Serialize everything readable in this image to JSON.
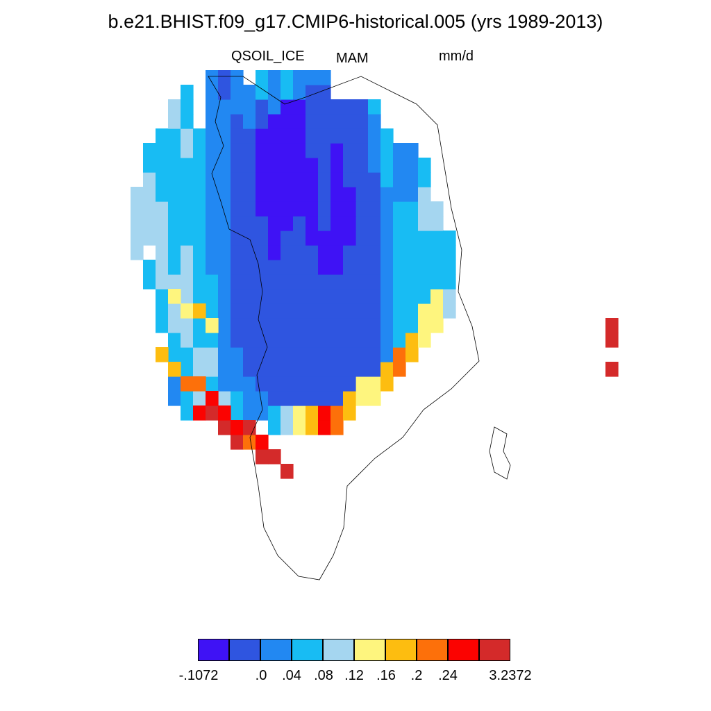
{
  "title": "b.e21.BHIST.f09_g17.CMIP6-historical.005 (yrs 1989-2013)",
  "variable": "QSOIL_ICE",
  "season": "MAM",
  "units": "mm/d",
  "colorbar": {
    "colors": [
      "#3f12f5",
      "#2f55e0",
      "#2288f2",
      "#18bcf3",
      "#a5d6f0",
      "#fef57e",
      "#fdbd10",
      "#fd700a",
      "#fb0301",
      "#d42a2a"
    ],
    "labels": [
      "-.1072",
      ".0",
      ".04",
      ".08",
      ".12",
      ".16",
      ".2",
      ".24",
      "3.2372"
    ]
  },
  "map_data": {
    "region": "Greenland",
    "columns": {
      "-18": [
        [
          72,
          76,
          4
        ]
      ],
      "-17": [
        [
          70,
          71,
          3
        ],
        [
          73,
          77,
          4
        ],
        [
          78,
          79,
          3
        ]
      ],
      "-16": [
        [
          67,
          69,
          3
        ],
        [
          70,
          75,
          4
        ],
        [
          76,
          80,
          3
        ]
      ],
      "-15": [
        [
          62,
          63,
          2
        ],
        [
          64,
          66,
          3
        ],
        [
          67,
          70,
          4
        ],
        [
          71,
          80,
          3
        ],
        [
          81,
          82,
          4
        ]
      ],
      "-14": [
        [
          61,
          65,
          3
        ],
        [
          66,
          72,
          4
        ],
        [
          73,
          78,
          3
        ],
        [
          79,
          80,
          4
        ],
        [
          81,
          83,
          3
        ]
      ],
      "-13": [
        [
          62,
          65,
          4
        ],
        [
          66,
          80,
          3
        ]
      ],
      "-12": [
        [
          62,
          63,
          3
        ],
        [
          64,
          65,
          4
        ],
        [
          66,
          70,
          3
        ],
        [
          71,
          84,
          2
        ]
      ],
      "-11": [
        [
          60,
          62,
          4
        ],
        [
          63,
          82,
          2
        ],
        [
          83,
          84,
          1
        ]
      ],
      "-10": [
        [
          60,
          62,
          3
        ],
        [
          63,
          65,
          2
        ],
        [
          66,
          81,
          1
        ],
        [
          82,
          84,
          2
        ]
      ],
      "-9": [
        [
          61,
          63,
          2
        ],
        [
          64,
          80,
          1
        ],
        [
          81,
          83,
          2
        ]
      ],
      "-8": [
        [
          61,
          62,
          2
        ],
        [
          63,
          74,
          1
        ],
        [
          75,
          80,
          0
        ],
        [
          81,
          82,
          1
        ],
        [
          83,
          84,
          3
        ]
      ],
      "-7": [
        [
          60,
          61,
          3
        ],
        [
          62,
          71,
          1
        ],
        [
          72,
          81,
          0
        ],
        [
          82,
          84,
          2
        ]
      ],
      "-6": [
        [
          60,
          61,
          4
        ],
        [
          62,
          73,
          1
        ],
        [
          74,
          82,
          0
        ],
        [
          83,
          84,
          3
        ]
      ],
      "-5": [
        [
          60,
          61,
          5
        ],
        [
          62,
          74,
          1
        ],
        [
          75,
          82,
          0
        ],
        [
          83,
          84,
          2
        ]
      ],
      "-4": [
        [
          60,
          61,
          6
        ],
        [
          62,
          72,
          1
        ],
        [
          73,
          78,
          0
        ],
        [
          79,
          83,
          1
        ],
        [
          84,
          84,
          2
        ]
      ],
      "-3": [
        [
          60,
          61,
          8
        ],
        [
          62,
          70,
          1
        ],
        [
          71,
          73,
          0
        ],
        [
          74,
          83,
          1
        ],
        [
          84,
          84,
          2
        ]
      ],
      "-2": [
        [
          60,
          61,
          7
        ],
        [
          62,
          70,
          1
        ],
        [
          71,
          79,
          0
        ],
        [
          80,
          82,
          1
        ]
      ],
      "-1": [
        [
          61,
          62,
          6
        ],
        [
          63,
          72,
          1
        ],
        [
          73,
          76,
          0
        ],
        [
          77,
          82,
          1
        ]
      ],
      "0": [
        [
          62,
          63,
          5
        ],
        [
          64,
          77,
          1
        ],
        [
          78,
          82,
          1
        ]
      ],
      "1": [
        [
          62,
          63,
          5
        ],
        [
          64,
          77,
          1
        ],
        [
          78,
          81,
          2
        ],
        [
          82,
          82,
          3
        ]
      ],
      "2": [
        [
          63,
          64,
          6
        ],
        [
          65,
          76,
          2
        ],
        [
          77,
          80,
          3
        ]
      ],
      "3": [
        [
          64,
          65,
          7
        ],
        [
          66,
          75,
          3
        ],
        [
          76,
          79,
          2
        ]
      ],
      "4": [
        [
          65,
          66,
          6
        ],
        [
          67,
          75,
          3
        ],
        [
          76,
          79,
          2
        ]
      ],
      "5": [
        [
          66,
          68,
          5
        ],
        [
          69,
          73,
          3
        ],
        [
          74,
          76,
          4
        ],
        [
          77,
          78,
          3
        ]
      ],
      "6": [
        [
          67,
          69,
          5
        ],
        [
          70,
          73,
          3
        ],
        [
          74,
          75,
          4
        ]
      ],
      "7": [
        [
          68,
          69,
          4
        ],
        [
          70,
          73,
          3
        ]
      ]
    },
    "west_coast_highs": [
      [
        -16,
        65,
        6
      ],
      [
        -15,
        64,
        6
      ],
      [
        -14,
        63,
        7
      ],
      [
        -13,
        61,
        8
      ],
      [
        -13,
        63,
        7
      ],
      [
        -12,
        61,
        9
      ],
      [
        -12,
        62,
        8
      ],
      [
        -11,
        60,
        9
      ],
      [
        -11,
        61,
        8
      ],
      [
        -10,
        59,
        9
      ],
      [
        -10,
        60,
        8
      ],
      [
        -9,
        59,
        7
      ],
      [
        -9,
        60,
        9
      ],
      [
        -8,
        58,
        9
      ],
      [
        -8,
        59,
        8
      ],
      [
        -7,
        58,
        9
      ],
      [
        -6,
        57,
        9
      ],
      [
        -15,
        69,
        5
      ],
      [
        -14,
        68,
        5
      ],
      [
        -13,
        68,
        6
      ],
      [
        -12,
        67,
        5
      ]
    ],
    "iceland_cells": [
      [
        20,
        64,
        9
      ],
      [
        20,
        66,
        9
      ],
      [
        20,
        67,
        9
      ]
    ]
  }
}
